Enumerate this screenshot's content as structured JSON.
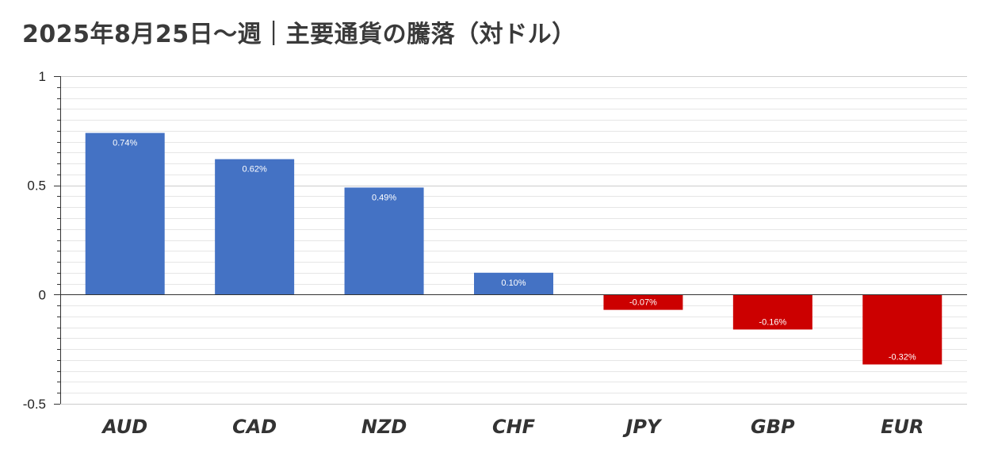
{
  "chart_data": {
    "type": "bar",
    "title": "2025年8月25日～週｜主要通貨の騰落（対ドル）",
    "xlabel": "",
    "ylabel": "",
    "categories": [
      "AUD",
      "CAD",
      "NZD",
      "CHF",
      "JPY",
      "GBP",
      "EUR"
    ],
    "values": [
      0.74,
      0.62,
      0.49,
      0.1,
      -0.07,
      -0.16,
      -0.32
    ],
    "data_labels": [
      "0.74%",
      "0.62%",
      "0.49%",
      "0.10%",
      "-0.07%",
      "-0.16%",
      "-0.32%"
    ],
    "ylim": [
      -0.5,
      1
    ],
    "yticks": [
      1,
      0.5,
      0,
      -0.5
    ],
    "ytick_labels": [
      "1",
      "0.5",
      "0",
      "-0.5"
    ],
    "grid": true,
    "legend": "none",
    "colors": {
      "positive": "#4472c4",
      "negative": "#cc0000",
      "grid_major": "#cccccc",
      "grid_minor": "#e6e6e6",
      "axis": "#333333"
    }
  }
}
